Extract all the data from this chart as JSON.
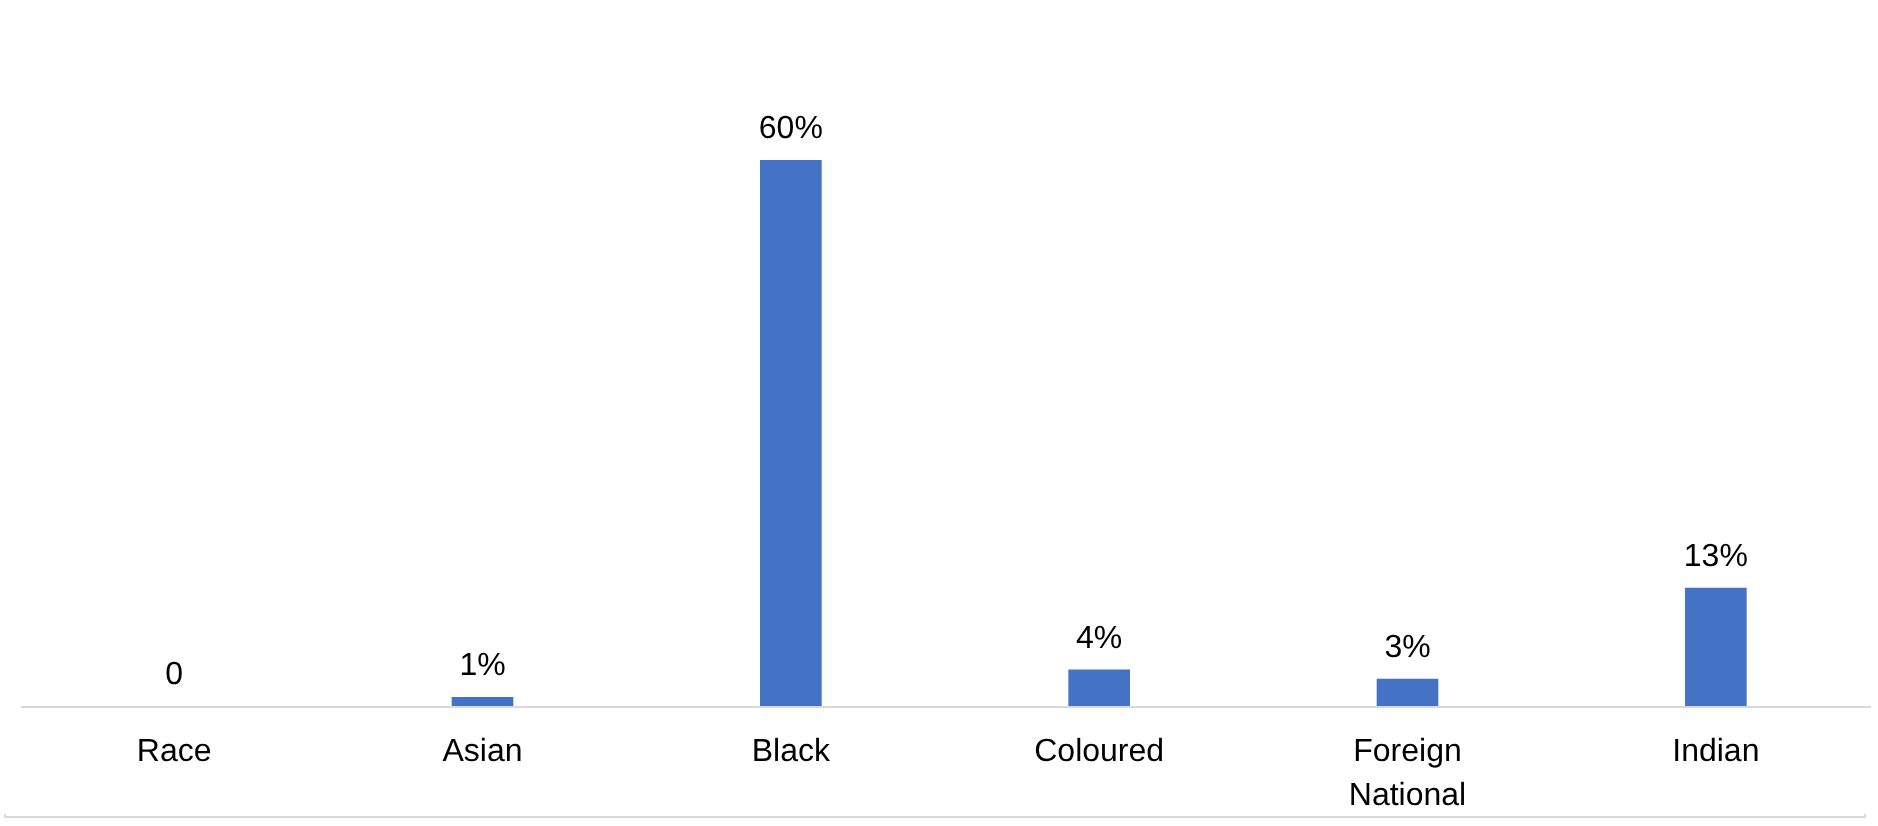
{
  "chart_data": {
    "type": "bar",
    "categories": [
      "Race",
      "Asian",
      "Black",
      "Coloured",
      "Foreign National",
      "Indian"
    ],
    "values": [
      0,
      1,
      60,
      4,
      3,
      13
    ],
    "value_labels": [
      "0",
      "1%",
      "60%",
      "4%",
      "3%",
      "13%"
    ],
    "color": "#4472c4"
  }
}
